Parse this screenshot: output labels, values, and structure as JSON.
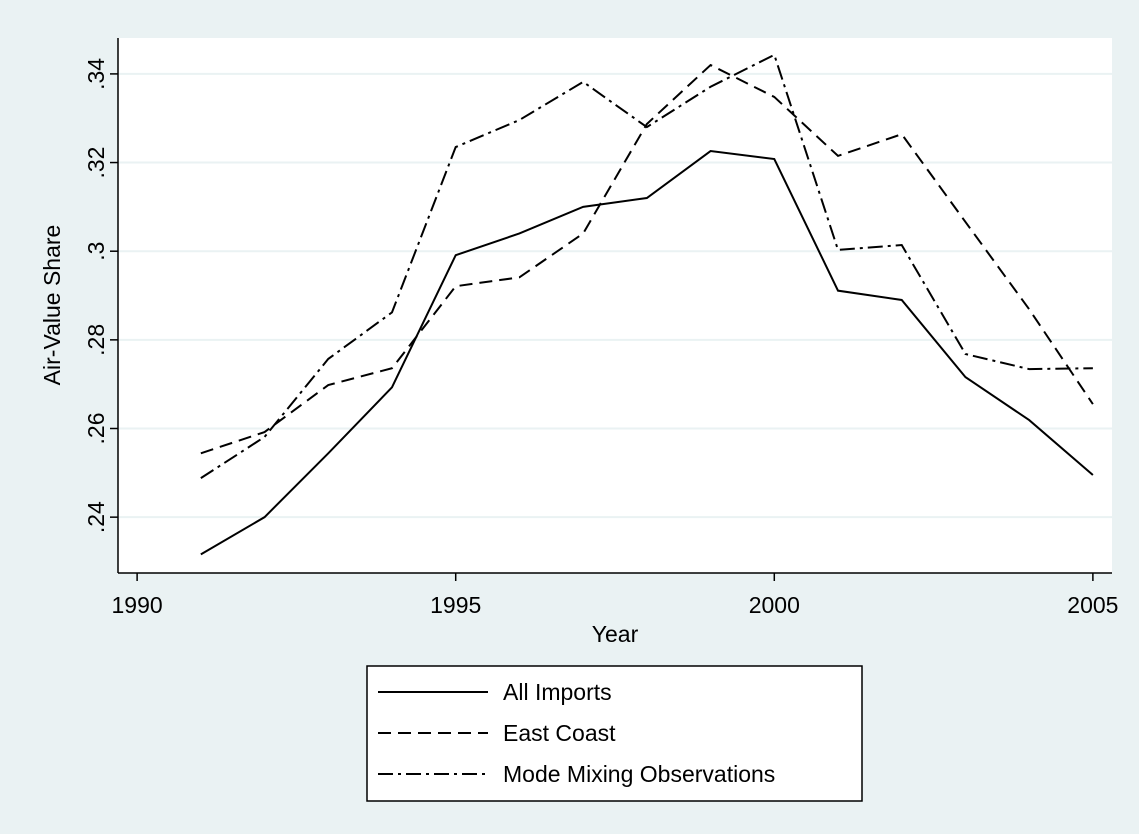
{
  "chart_data": {
    "type": "line",
    "x_label": "Year",
    "y_label": "Air-Value Share",
    "x": [
      1991,
      1992,
      1993,
      1994,
      1995,
      1996,
      1997,
      1998,
      1999,
      2000,
      2001,
      2002,
      2003,
      2004,
      2005
    ],
    "series": [
      {
        "name": "All Imports",
        "color": "#000000",
        "dash": "solid",
        "values": [
          0.2316,
          0.24,
          0.2544,
          0.2693,
          0.2991,
          0.304,
          0.31,
          0.312,
          0.3226,
          0.3208,
          0.2911,
          0.289,
          0.2716,
          0.2619,
          0.2495
        ]
      },
      {
        "name": "East Coast",
        "color": "#000000",
        "dash": "dashed",
        "values": [
          0.2544,
          0.2592,
          0.2698,
          0.2736,
          0.2921,
          0.2941,
          0.304,
          0.3287,
          0.342,
          0.3348,
          0.3215,
          0.3264,
          0.3066,
          0.2869,
          0.2655
        ]
      },
      {
        "name": "Mode Mixing Observations",
        "color": "#000000",
        "dash": "dashdot",
        "values": [
          0.2488,
          0.2581,
          0.2757,
          0.2862,
          0.3235,
          0.3296,
          0.3382,
          0.328,
          0.3371,
          0.3443,
          0.3003,
          0.3014,
          0.2768,
          0.2734,
          0.2736
        ]
      }
    ],
    "xlim": [
      1989.7,
      2005.3
    ],
    "xticks": [
      1990,
      1995,
      2000,
      2005
    ],
    "ylim": [
      0.2274,
      0.3481
    ],
    "yticks": [
      {
        "value": 0.24,
        "label": ".24"
      },
      {
        "value": 0.26,
        "label": ".26"
      },
      {
        "value": 0.28,
        "label": ".28"
      },
      {
        "value": 0.3,
        "label": ".3"
      },
      {
        "value": 0.32,
        "label": ".32"
      },
      {
        "value": 0.34,
        "label": ".34"
      }
    ],
    "grid": true,
    "legend": "bottom"
  }
}
